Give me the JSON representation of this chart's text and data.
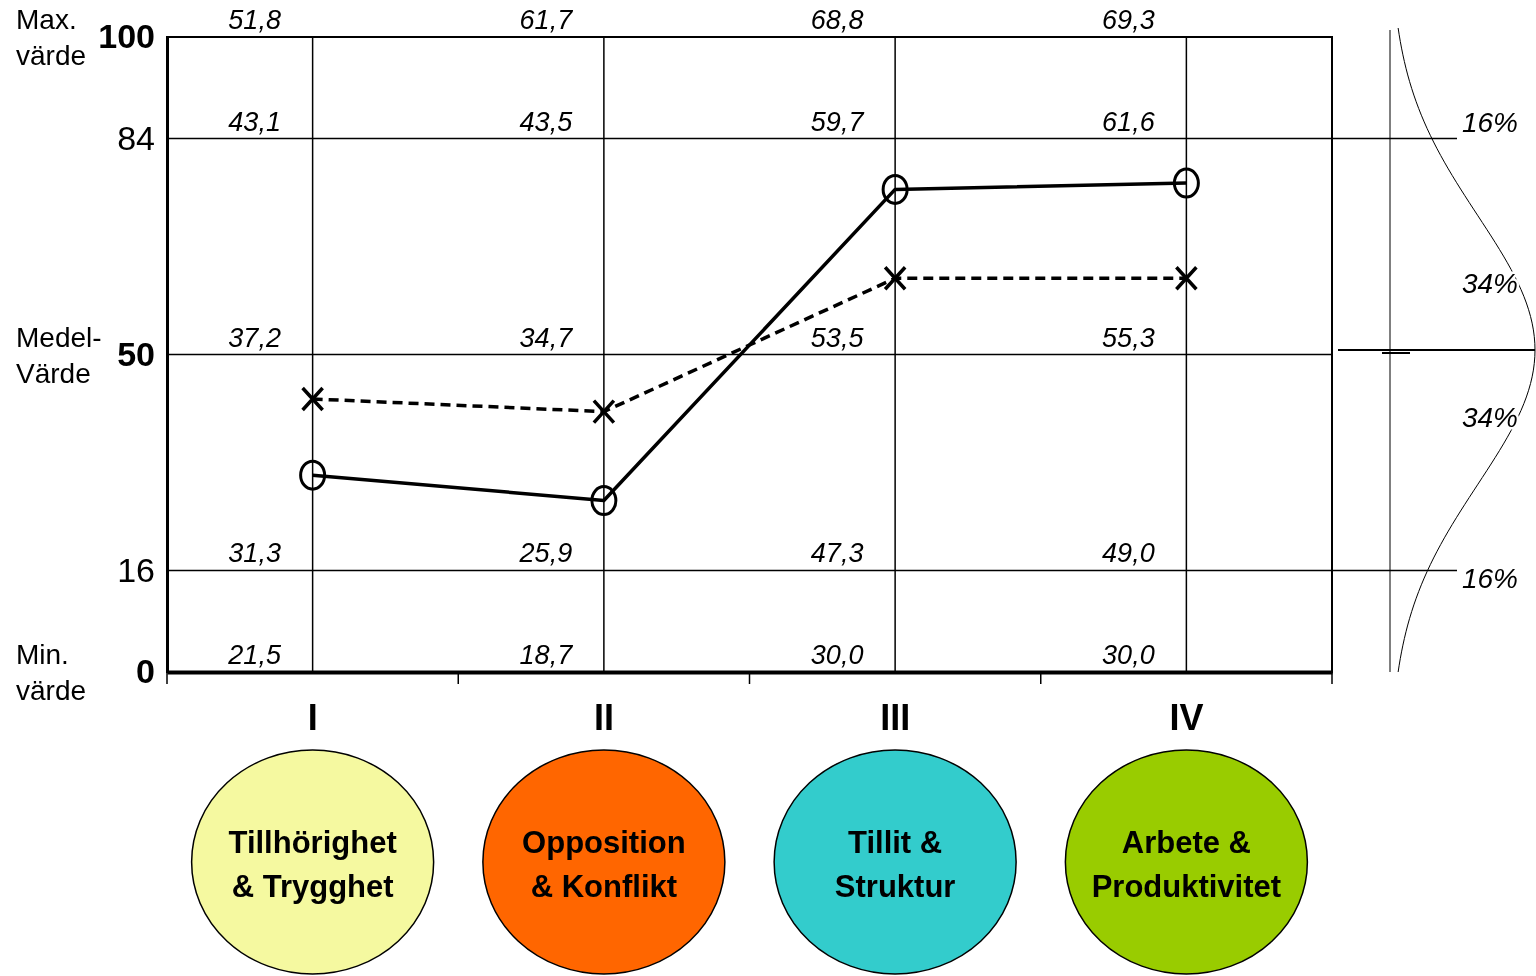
{
  "chart_data": {
    "type": "line",
    "categories": [
      "I",
      "II",
      "III",
      "IV"
    ],
    "series": [
      {
        "color": "#000000",
        "line_style": "solid",
        "marker": "circle",
        "values": [
          31,
          27,
          76,
          77
        ]
      },
      {
        "color": "#000000",
        "line_style": "dashed",
        "marker": "cross",
        "values": [
          43,
          41,
          62,
          62
        ]
      }
    ],
    "ylim": [
      0,
      100
    ],
    "yticks": [
      0,
      16,
      50,
      84,
      100
    ],
    "grid": true,
    "annotations": [
      "Max.\nvärde",
      "Medel-\nVärde",
      "Min.\nvärde",
      "51,8",
      "61,7",
      "68,8",
      "69,3",
      "43,1",
      "43,5",
      "59,7",
      "61,6",
      "37,2",
      "34,7",
      "53,5",
      "55,3",
      "31,3",
      "25,9",
      "47,3",
      "49,0",
      "21,5",
      "18,7",
      "30,0",
      "30,0",
      "Tillhörighet\n& Trygghet",
      "Opposition\n& Konflikt",
      "Tillit &\nStruktur",
      "Arbete &\nProduktivitet",
      "16%",
      "34%",
      "34%",
      "16%"
    ]
  }
}
